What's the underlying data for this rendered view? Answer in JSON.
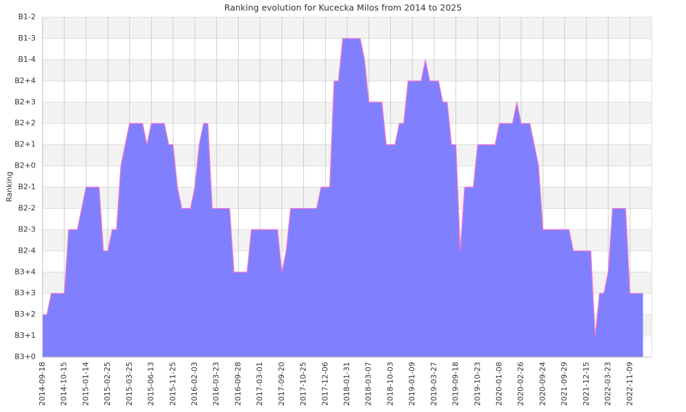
{
  "chart_data": {
    "type": "area",
    "title": "Ranking evolution for Kucecka Milos from 2014 to 2025",
    "y_label": "Ranking",
    "categories": [
      "2014-09-18",
      null,
      null,
      null,
      null,
      "2014-10-15",
      null,
      null,
      null,
      null,
      "2015-01-14",
      null,
      null,
      null,
      null,
      "2015-02-25",
      null,
      null,
      null,
      null,
      "2015-03-25",
      null,
      null,
      null,
      null,
      "2015-06-13",
      null,
      null,
      null,
      null,
      "2015-11-25",
      null,
      null,
      null,
      null,
      "2016-02-03",
      null,
      null,
      null,
      null,
      "2016-03-23",
      null,
      null,
      null,
      null,
      "2016-09-28",
      null,
      null,
      null,
      null,
      "2017-03-01",
      null,
      null,
      null,
      null,
      "2017-09-20",
      null,
      null,
      null,
      null,
      "2017-10-25",
      null,
      null,
      null,
      null,
      "2017-12-06",
      null,
      null,
      null,
      null,
      "2018-01-31",
      null,
      null,
      null,
      null,
      "2018-03-07",
      null,
      null,
      null,
      null,
      "2018-10-03",
      null,
      null,
      null,
      null,
      "2019-01-09",
      null,
      null,
      null,
      null,
      "2019-03-27",
      null,
      null,
      null,
      null,
      "2019-09-18",
      null,
      null,
      null,
      null,
      "2019-10-23",
      null,
      null,
      null,
      null,
      "2020-01-08",
      null,
      null,
      null,
      null,
      "2020-02-26",
      null,
      null,
      null,
      null,
      "2020-09-24",
      null,
      null,
      null,
      null,
      "2021-09-29",
      null,
      null,
      null,
      null,
      "2021-12-15",
      null,
      null,
      null,
      null,
      "2022-03-23",
      null,
      null,
      null,
      null,
      "2022-11-09",
      null,
      null,
      null
    ],
    "values": [
      2,
      2,
      3,
      3,
      3,
      3,
      6,
      6,
      6,
      7,
      8,
      8,
      8,
      8,
      5,
      5,
      6,
      6,
      9,
      10,
      11,
      11,
      11,
      11,
      10,
      11,
      11,
      11,
      11,
      10,
      10,
      8,
      7,
      7,
      7,
      8,
      10,
      11,
      11,
      7,
      7,
      7,
      7,
      7,
      4,
      4,
      4,
      4,
      6,
      6,
      6,
      6,
      6,
      6,
      6,
      4,
      5,
      7,
      7,
      7,
      7,
      7,
      7,
      7,
      8,
      8,
      8,
      13,
      13,
      15,
      15,
      15,
      15,
      15,
      14,
      12,
      12,
      12,
      12,
      10,
      10,
      10,
      11,
      11,
      13,
      13,
      13,
      13,
      14,
      13,
      13,
      13,
      12,
      12,
      10,
      10,
      5,
      8,
      8,
      8,
      10,
      10,
      10,
      10,
      10,
      11,
      11,
      11,
      11,
      12,
      11,
      11,
      11,
      10,
      9,
      6,
      6,
      6,
      6,
      6,
      6,
      6,
      5,
      5,
      5,
      5,
      5,
      1,
      3,
      3,
      4,
      7,
      7,
      7,
      7,
      3,
      3,
      3,
      3
    ],
    "color": "#8080ff",
    "line_color": "#ff77cc",
    "ylim": [
      0,
      16
    ],
    "yticks": [
      {
        "value": 0,
        "label": "B3+0"
      },
      {
        "value": 1,
        "label": "B3+1"
      },
      {
        "value": 2,
        "label": "B3+2"
      },
      {
        "value": 3,
        "label": "B3+3"
      },
      {
        "value": 4,
        "label": "B3+4"
      },
      {
        "value": 5,
        "label": "B2-4"
      },
      {
        "value": 6,
        "label": "B2-3"
      },
      {
        "value": 7,
        "label": "B2-2"
      },
      {
        "value": 8,
        "label": "B2-1"
      },
      {
        "value": 9,
        "label": "B2+0"
      },
      {
        "value": 10,
        "label": "B2+1"
      },
      {
        "value": 11,
        "label": "B2+2"
      },
      {
        "value": 12,
        "label": "B2+3"
      },
      {
        "value": 13,
        "label": "B2+4"
      },
      {
        "value": 14,
        "label": "B1-4"
      },
      {
        "value": 15,
        "label": "B1-3"
      },
      {
        "value": 16,
        "label": "B1-2"
      }
    ],
    "grid": true
  }
}
